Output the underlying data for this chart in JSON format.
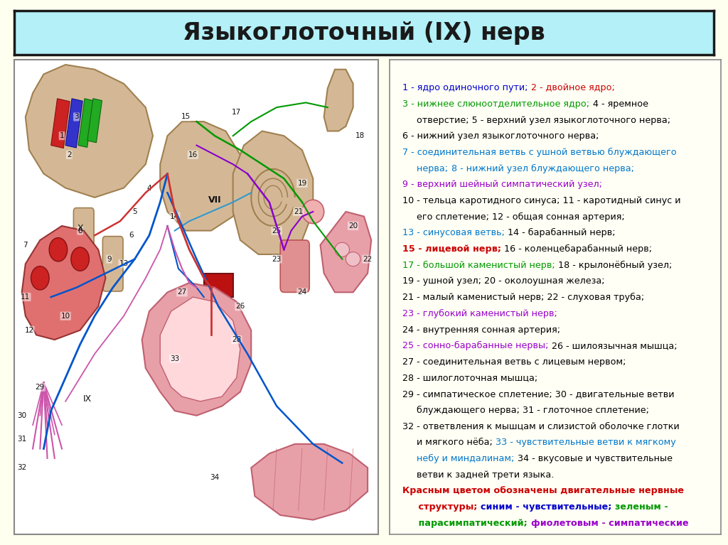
{
  "title": "Языкоглоточный (IX) нерв",
  "title_bg": "#b3f0f7",
  "title_border": "#1a1a1a",
  "bg_color": "#fffff0",
  "left_panel_bg": "#ffffff",
  "right_panel_bg": "#fffff5",
  "right_panel_border": "#888888",
  "title_fontsize": 24,
  "legend_fontsize": 9.2,
  "legend_lines": [
    [
      {
        "text": "1 - ядро одиночного пути; ",
        "color": "#0000cc",
        "bold": false
      },
      {
        "text": "2 - двойное ядро;",
        "color": "#cc0000",
        "bold": false
      }
    ],
    [
      {
        "text": "3 - нижнее слюноотделительное ядро;",
        "color": "#009900",
        "bold": false
      },
      {
        "text": " 4 - яремное",
        "color": "#000000",
        "bold": false
      }
    ],
    [
      {
        "text": "     отверстие; 5 - верхний узел языкоглоточного нерва;",
        "color": "#000000",
        "bold": false
      }
    ],
    [
      {
        "text": "6 - нижний узел языкоглоточного нерва;",
        "color": "#000000",
        "bold": false
      }
    ],
    [
      {
        "text": "7 - соединительная ветвь с ушной ветвью блуждающего",
        "color": "#0077cc",
        "bold": false
      }
    ],
    [
      {
        "text": "     нерва; ",
        "color": "#0077cc",
        "bold": false
      },
      {
        "text": "8 - нижний узел блуждающего нерва;",
        "color": "#0077cc",
        "bold": false
      }
    ],
    [
      {
        "text": "9 - верхний шейный симпатический узел;",
        "color": "#9900cc",
        "bold": false
      }
    ],
    [
      {
        "text": "10 - тельца каротидного синуса; 11 - каротидный синус и",
        "color": "#000000",
        "bold": false
      }
    ],
    [
      {
        "text": "     его сплетение; 12 - общая сонная артерия;",
        "color": "#000000",
        "bold": false
      }
    ],
    [
      {
        "text": "13 - синусовая ветвь;",
        "color": "#0077cc",
        "bold": false
      },
      {
        "text": " 14 - барабанный нерв;",
        "color": "#000000",
        "bold": false
      }
    ],
    [
      {
        "text": "15 - лицевой нерв;",
        "color": "#cc0000",
        "bold": true
      },
      {
        "text": " 16 - коленцебарабанный нерв;",
        "color": "#000000",
        "bold": false
      }
    ],
    [
      {
        "text": "17 - большой каменистый нерв;",
        "color": "#009900",
        "bold": false
      },
      {
        "text": " 18 - крылонёбный узел;",
        "color": "#000000",
        "bold": false
      }
    ],
    [
      {
        "text": "19 - ушной узел; 20 - околоушная железа;",
        "color": "#000000",
        "bold": false
      }
    ],
    [
      {
        "text": "21 - малый каменистый нерв; 22 - слуховая труба;",
        "color": "#000000",
        "bold": false
      }
    ],
    [
      {
        "text": "23 - глубокий каменистый нерв;",
        "color": "#9900cc",
        "bold": false
      }
    ],
    [
      {
        "text": "24 - внутренняя сонная артерия;",
        "color": "#000000",
        "bold": false
      }
    ],
    [
      {
        "text": "25 - сонно-барабанные нервы;",
        "color": "#9900cc",
        "bold": false
      },
      {
        "text": " 26 - шилоязычная мышца;",
        "color": "#000000",
        "bold": false
      }
    ],
    [
      {
        "text": "27 - соединительная ветвь с лицевым нервом;",
        "color": "#000000",
        "bold": false
      }
    ],
    [
      {
        "text": "28 - шилоглоточная мышца;",
        "color": "#000000",
        "bold": false
      }
    ],
    [
      {
        "text": "29 - симпатическое сплетение; 30 - двигательные ветви",
        "color": "#000000",
        "bold": false
      }
    ],
    [
      {
        "text": "     блуждающего нерва; 31 - глоточное сплетение;",
        "color": "#000000",
        "bold": false
      }
    ],
    [
      {
        "text": "32 - ответвления к мышцам и слизистой оболочке глотки",
        "color": "#000000",
        "bold": false
      }
    ],
    [
      {
        "text": "     и мягкого нёба; ",
        "color": "#000000",
        "bold": false
      },
      {
        "text": "33 - чувствительные ветви к мягкому",
        "color": "#0077cc",
        "bold": false
      }
    ],
    [
      {
        "text": "     небу и миндалинам;",
        "color": "#0077cc",
        "bold": false
      },
      {
        "text": " 34 - вкусовые и чувствительные",
        "color": "#000000",
        "bold": false
      }
    ],
    [
      {
        "text": "     ветви к задней трети языка.",
        "color": "#000000",
        "bold": false
      }
    ],
    [
      {
        "text": "Красным цветом обозначены двигательные нервные",
        "color": "#cc0000",
        "bold": true
      }
    ],
    [
      {
        "text": "     структуры; ",
        "color": "#cc0000",
        "bold": true
      },
      {
        "text": "синим - чувствительные; ",
        "color": "#0000cc",
        "bold": true
      },
      {
        "text": "зеленым -",
        "color": "#009900",
        "bold": true
      }
    ],
    [
      {
        "text": "     парасимпатический; ",
        "color": "#009900",
        "bold": true
      },
      {
        "text": "фиолетовым - симпатические",
        "color": "#9900cc",
        "bold": true
      }
    ]
  ]
}
